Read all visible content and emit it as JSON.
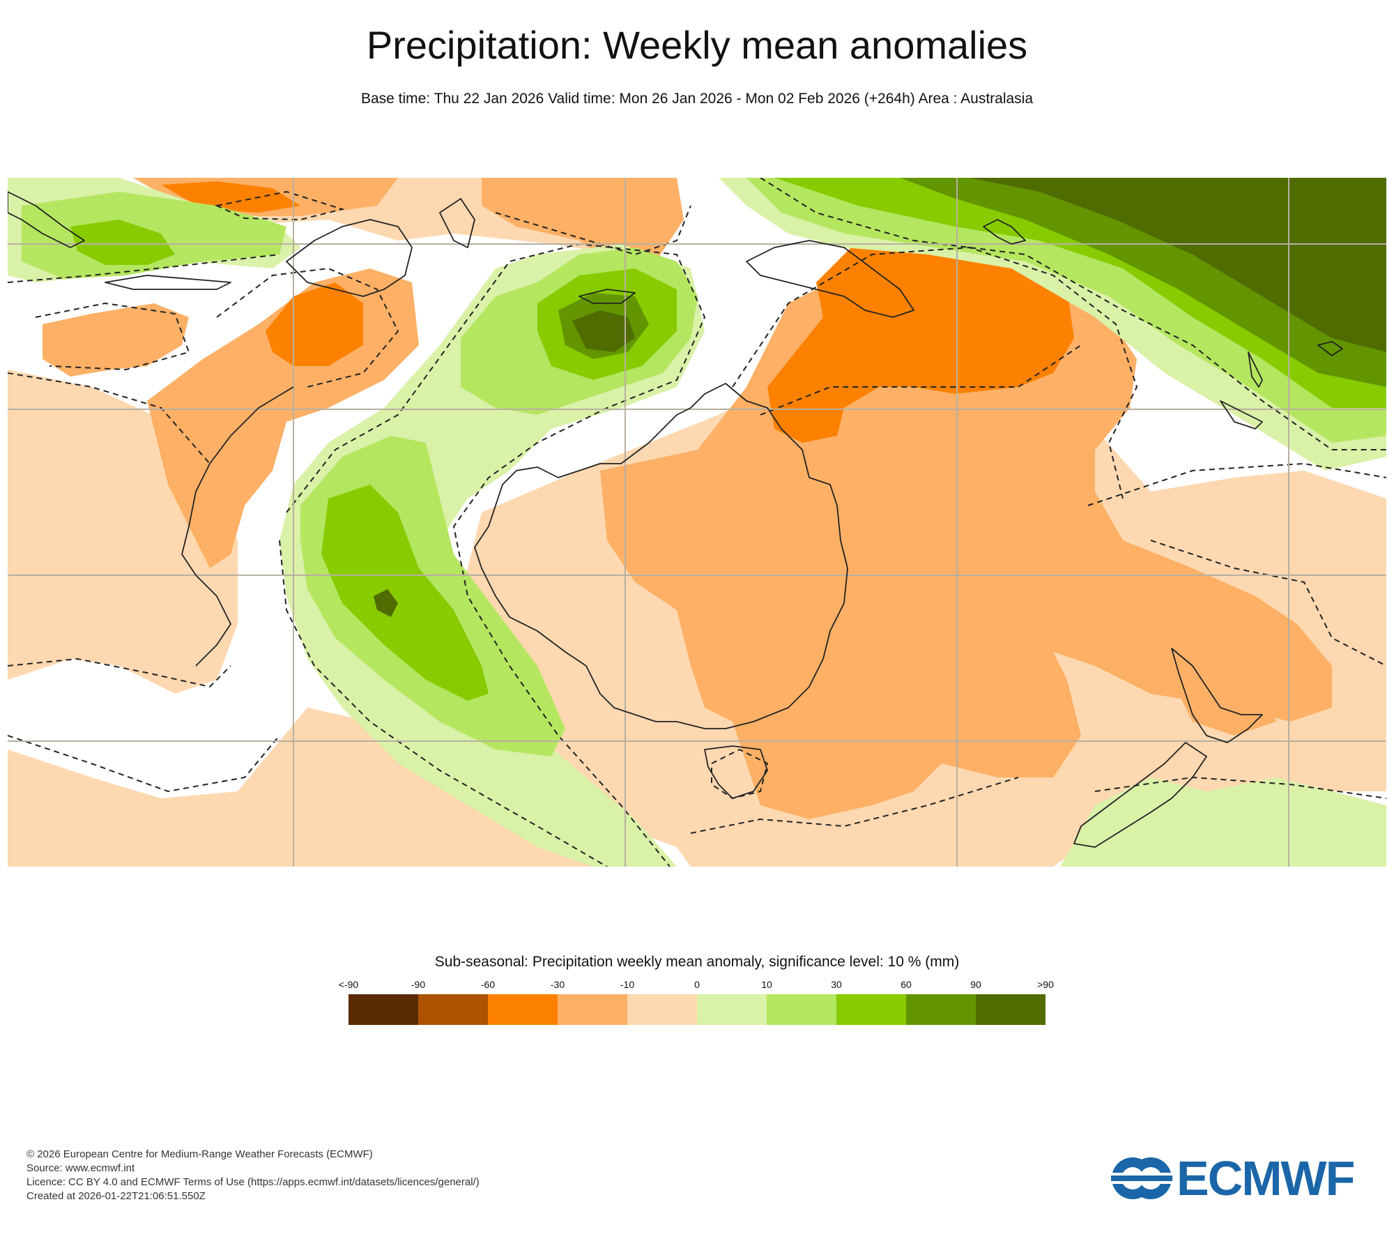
{
  "header": {
    "title": "Precipitation: Weekly mean anomalies",
    "subtitle": "Base time: Thu 22 Jan 2026 Valid time: Mon 26 Jan 2026 - Mon 02 Feb 2026 (+264h) Area : Australasia"
  },
  "map": {
    "region": "Australasia",
    "colors": {
      "dry_10": "#fdd8b0",
      "dry_30": "#fdb066",
      "dry_60": "#fd8100",
      "wet_10": "#daf1a8",
      "wet_30": "#b5e660",
      "wet_60": "#87cb00",
      "wet_90": "#629500",
      "wet_gt90": "#506b00",
      "coastline": "#222222",
      "gridline": "#b8b0a0"
    }
  },
  "legend": {
    "title": "Sub-seasonal: Precipitation weekly mean anomaly, significance level: 10 % (mm)",
    "ticks": [
      "<-90",
      "-90",
      "-60",
      "-30",
      "-10",
      "0",
      "10",
      "30",
      "60",
      "90",
      ">90"
    ],
    "colors": [
      "#5a2a00",
      "#ac5200",
      "#fd8100",
      "#fdb066",
      "#fdd8b0",
      "#daf1a8",
      "#b5e660",
      "#87cb00",
      "#629500",
      "#506b00"
    ]
  },
  "footer": {
    "copyright": "© 2026 European Centre for Medium-Range Weather Forecasts (ECMWF)",
    "source": "Source: www.ecmwf.int",
    "licence": "Licence: CC BY 4.0 and ECMWF Terms of Use (https://apps.ecmwf.int/datasets/licences/general/)",
    "created": "Created at 2026-01-22T21:06:51.550Z"
  },
  "logo": {
    "text": "ECMWF",
    "color": "#1a66a8"
  }
}
